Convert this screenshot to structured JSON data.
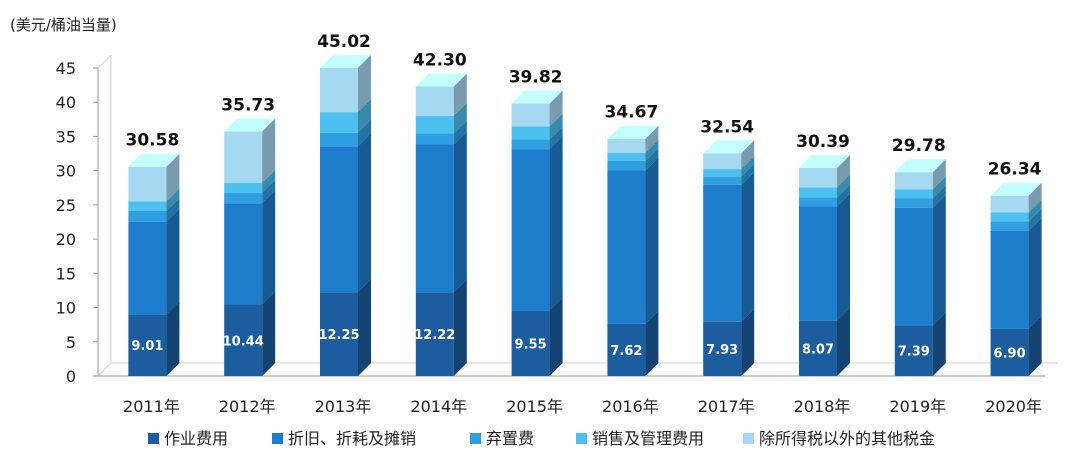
{
  "chart_data": {
    "type": "bar",
    "stacked": true,
    "title": "",
    "unit_label": "(美元/桶油当量)",
    "xlabel": "",
    "ylabel": "",
    "ylim": [
      0,
      45
    ],
    "yticks": [
      0,
      5,
      10,
      15,
      20,
      25,
      30,
      35,
      40,
      45
    ],
    "categories": [
      "2011年",
      "2012年",
      "2013年",
      "2014年",
      "2015年",
      "2016年",
      "2017年",
      "2018年",
      "2019年",
      "2020年"
    ],
    "totals": [
      30.58,
      35.73,
      45.02,
      42.3,
      39.82,
      34.67,
      32.54,
      30.39,
      29.78,
      26.34
    ],
    "totals_text": [
      "30.58",
      "35.73",
      "45.02",
      "42.30",
      "39.82",
      "34.67",
      "32.54",
      "30.39",
      "29.78",
      "26.34"
    ],
    "legend_position": "bottom",
    "series": [
      {
        "name": "作业费用",
        "color": "#1b5d9e",
        "values": [
          9.01,
          10.44,
          12.25,
          12.22,
          9.55,
          7.62,
          7.93,
          8.07,
          7.39,
          6.9
        ],
        "values_text": [
          "9.01",
          "10.44",
          "12.25",
          "12.22",
          "9.55",
          "7.62",
          "7.93",
          "8.07",
          "7.39",
          "6.90"
        ]
      },
      {
        "name": "折旧、折耗及摊销",
        "color": "#1e7ccc",
        "values": [
          13.5,
          14.8,
          21.3,
          21.6,
          23.6,
          22.4,
          20.0,
          16.7,
          17.2,
          14.3
        ]
      },
      {
        "name": "弃置费",
        "color": "#2f9fe2",
        "values": [
          1.6,
          1.5,
          2.0,
          1.6,
          1.4,
          1.4,
          1.2,
          1.3,
          1.4,
          1.4
        ]
      },
      {
        "name": "销售及管理费用",
        "color": "#4cc0ef",
        "values": [
          1.4,
          1.5,
          3.0,
          2.6,
          1.9,
          1.2,
          1.1,
          1.5,
          1.3,
          1.3
        ]
      },
      {
        "name": "除所得税以外的其他税金",
        "color": "#a6d8f2",
        "values": [
          5.07,
          7.49,
          6.47,
          4.28,
          3.37,
          2.05,
          2.31,
          2.82,
          2.49,
          2.44
        ]
      }
    ]
  }
}
